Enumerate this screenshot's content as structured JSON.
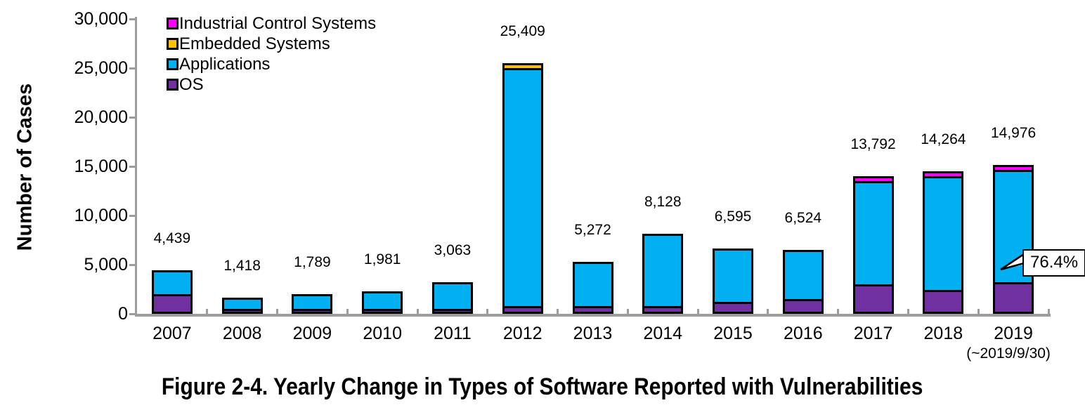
{
  "caption": "Figure 2-4. Yearly Change in Types of Software Reported with Vulnerabilities",
  "chart_data": {
    "type": "bar",
    "subtype": "stacked-vertical",
    "title": "",
    "xlabel": "",
    "ylabel": "Number of Cases",
    "ylim": [
      0,
      30000
    ],
    "ytick_step": 5000,
    "ytick_labels": [
      "0",
      "5,000",
      "10,000",
      "15,000",
      "20,000",
      "25,000",
      "30,000"
    ],
    "grid": "off",
    "legend_position": "top-left-inside",
    "legend": [
      {
        "label": "Industrial Control Systems",
        "color": "#FF00FF"
      },
      {
        "label": "Embedded Systems",
        "color": "#FFC000"
      },
      {
        "label": "Applications",
        "color": "#00B0F0"
      },
      {
        "label": "OS",
        "color": "#7030A0"
      }
    ],
    "categories": [
      "2007",
      "2008",
      "2009",
      "2010",
      "2011",
      "2012",
      "2013",
      "2014",
      "2015",
      "2016",
      "2017",
      "2018",
      "2019"
    ],
    "x_sub_label": {
      "category": "2019",
      "text": "(~2019/9/30)"
    },
    "series": [
      {
        "name": "OS",
        "color": "#7030A0",
        "values": [
          2000,
          280,
          300,
          200,
          350,
          800,
          780,
          780,
          1200,
          1500,
          3000,
          2450,
          3204
        ]
      },
      {
        "name": "Applications",
        "color": "#00B0F0",
        "values": [
          2439,
          1138,
          1489,
          1781,
          2713,
          24209,
          4492,
          7348,
          5395,
          5024,
          10492,
          11564,
          11442
        ]
      },
      {
        "name": "Embedded Systems",
        "color": "#FFC000",
        "values": [
          0,
          0,
          0,
          0,
          0,
          400,
          0,
          0,
          0,
          0,
          0,
          0,
          0
        ]
      },
      {
        "name": "Industrial Control Systems",
        "color": "#FF00FF",
        "values": [
          0,
          0,
          0,
          0,
          0,
          0,
          0,
          0,
          0,
          0,
          300,
          250,
          330
        ]
      }
    ],
    "totals": [
      4439,
      1418,
      1789,
      1981,
      3063,
      25409,
      5272,
      8128,
      6595,
      6524,
      13792,
      14264,
      14976
    ],
    "total_labels": [
      "4,439",
      "1,418",
      "1,789",
      "1,981",
      "3,063",
      "25,409",
      "5,272",
      "8,128",
      "6,595",
      "6,524",
      "13,792",
      "14,264",
      "14,976"
    ],
    "annotation": {
      "text": "76.4%",
      "target_category": "2019",
      "target_series": "Applications"
    },
    "axis_color": "#9c9c9c",
    "bar_border_color": "#000000"
  }
}
